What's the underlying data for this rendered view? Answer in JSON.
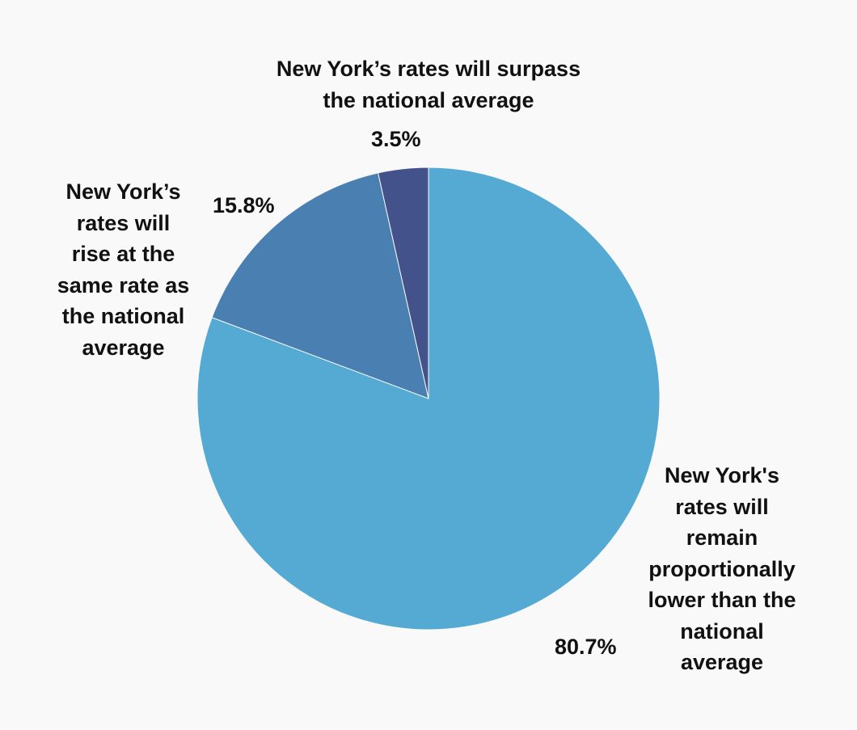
{
  "chart_data": {
    "type": "pie",
    "title": "",
    "start_angle": "12 o'clock",
    "direction": "clockwise",
    "slices": [
      {
        "label": "New York's rates will remain proportionally lower than the national average",
        "label_lines": [
          "New York's",
          "rates will",
          "remain",
          "proportionally",
          "lower than the",
          "national",
          "average"
        ],
        "value": 80.7,
        "value_label": "80.7%",
        "color": "#55aad3"
      },
      {
        "label": "New York’s rates will rise at the same rate as the national average",
        "label_lines": [
          "New York’s",
          "rates will",
          "rise at the",
          "same rate as",
          "the national",
          "average"
        ],
        "value": 15.8,
        "value_label": "15.8%",
        "color": "#4a7fb2"
      },
      {
        "label": "New York’s rates will surpass the national average",
        "label_lines": [
          "New York’s rates will surpass",
          "the national average"
        ],
        "value": 3.5,
        "value_label": "3.5%",
        "color": "#43528a"
      }
    ]
  }
}
